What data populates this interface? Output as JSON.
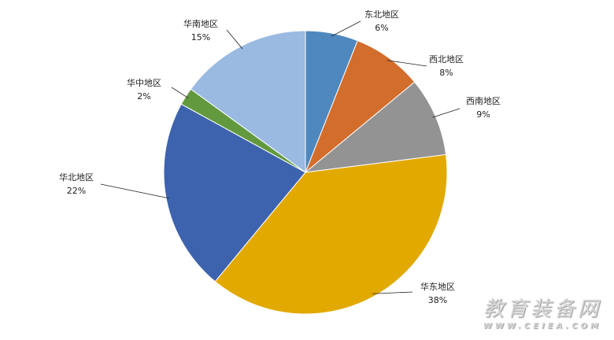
{
  "chart_data": {
    "type": "pie",
    "start": "top",
    "direction": "clockwise",
    "slices": [
      {
        "label": "东北地区",
        "value": 6,
        "pct": "6%",
        "color": "#4f88bf"
      },
      {
        "label": "西北地区",
        "value": 8,
        "pct": "8%",
        "color": "#d36d2b"
      },
      {
        "label": "西南地区",
        "value": 9,
        "pct": "9%",
        "color": "#939393"
      },
      {
        "label": "华东地区",
        "value": 38,
        "pct": "38%",
        "color": "#e2a900"
      },
      {
        "label": "华北地区",
        "value": 22,
        "pct": "22%",
        "color": "#3e63ae"
      },
      {
        "label": "华中地区",
        "value": 2,
        "pct": "2%",
        "color": "#62993e"
      },
      {
        "label": "华南地区",
        "value": 15,
        "pct": "15%",
        "color": "#9abae1"
      }
    ]
  },
  "watermark": {
    "title": "教育装备网",
    "url": "WWW.CEIEA.COM"
  }
}
